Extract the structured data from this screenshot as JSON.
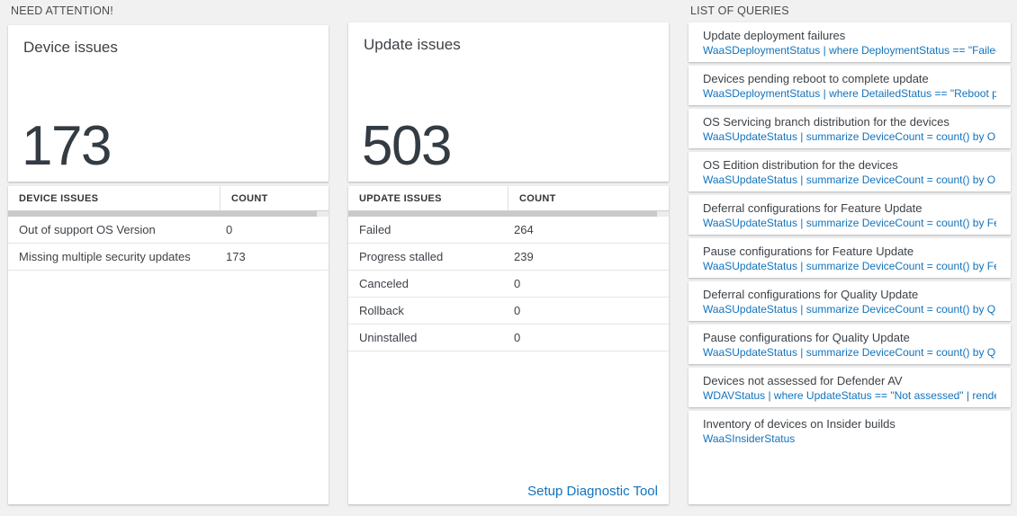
{
  "sections": {
    "need_attention": "NEED ATTENTION!",
    "list_of_queries": "LIST OF QUERIES"
  },
  "colors": {
    "accent_blue": "#1173bd",
    "big_number": "#333b43",
    "page_background": "#f1f1f1",
    "card_background": "#ffffff"
  },
  "device_card": {
    "title": "Device issues",
    "count": "173"
  },
  "update_card": {
    "title": "Update issues",
    "count": "503"
  },
  "device_table": {
    "headers": [
      "DEVICE ISSUES",
      "COUNT"
    ],
    "rows": [
      {
        "label": "Out of support OS Version",
        "count": "0"
      },
      {
        "label": "Missing multiple security updates",
        "count": "173"
      }
    ]
  },
  "update_table": {
    "headers": [
      "UPDATE ISSUES",
      "COUNT"
    ],
    "rows": [
      {
        "label": "Failed",
        "count": "264"
      },
      {
        "label": "Progress stalled",
        "count": "239"
      },
      {
        "label": "Canceled",
        "count": "0"
      },
      {
        "label": "Rollback",
        "count": "0"
      },
      {
        "label": "Uninstalled",
        "count": "0"
      }
    ],
    "link_label": "Setup Diagnostic Tool"
  },
  "queries": [
    {
      "title": "Update deployment failures",
      "query": "WaaSDeploymentStatus | where DeploymentStatus == \"Failed\" |..."
    },
    {
      "title": "Devices pending reboot to complete update",
      "query": "WaaSDeploymentStatus | where DetailedStatus == \"Reboot pend..."
    },
    {
      "title": "OS Servicing branch distribution for the devices",
      "query": "WaaSUpdateStatus | summarize DeviceCount = count() by OSSer..."
    },
    {
      "title": "OS Edition distribution for the devices",
      "query": "WaaSUpdateStatus | summarize DeviceCount = count() by OSEdit..."
    },
    {
      "title": "Deferral configurations for Feature Update",
      "query": "WaaSUpdateStatus | summarize DeviceCount = count() by Featur..."
    },
    {
      "title": "Pause configurations for Feature Update",
      "query": "WaaSUpdateStatus | summarize DeviceCount = count() by Featur..."
    },
    {
      "title": "Deferral configurations for Quality Update",
      "query": "WaaSUpdateStatus | summarize DeviceCount = count() by Qualit..."
    },
    {
      "title": "Pause configurations for Quality Update",
      "query": "WaaSUpdateStatus | summarize DeviceCount = count() by Qualit..."
    },
    {
      "title": "Devices not assessed for Defender AV",
      "query": "WDAVStatus | where UpdateStatus == \"Not assessed\" | render ta..."
    },
    {
      "title": "Inventory of devices on Insider builds",
      "query": "WaaSInsiderStatus"
    }
  ]
}
